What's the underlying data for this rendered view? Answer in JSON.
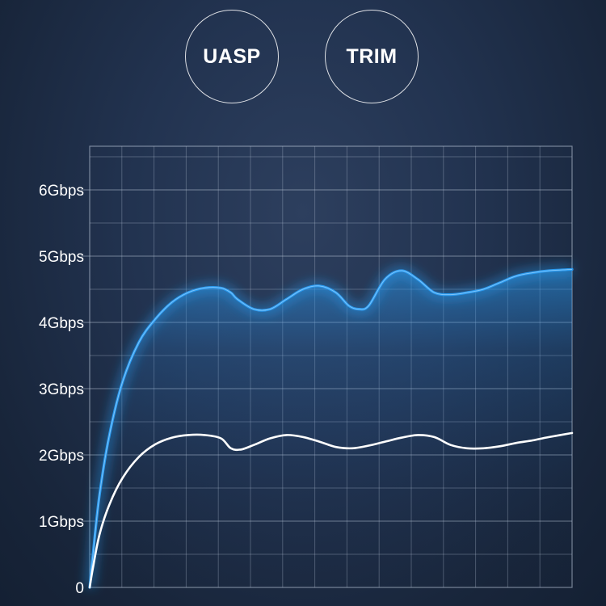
{
  "badges": {
    "uasp": "UASP",
    "trim": "TRIM"
  },
  "colors": {
    "background": "#1c2a42",
    "grid": "#b8c4d6",
    "series_blue": "#2a9bf0",
    "series_white": "#ffffff"
  },
  "chart_data": {
    "type": "line",
    "title": "",
    "xlabel": "",
    "ylabel": "",
    "ylim": [
      0,
      6.6
    ],
    "xlim": [
      0,
      14.7
    ],
    "yticks": [
      {
        "value": 0,
        "label": "0"
      },
      {
        "value": 1,
        "label": "1Gbps"
      },
      {
        "value": 2,
        "label": "2Gbps"
      },
      {
        "value": 3,
        "label": "3Gbps"
      },
      {
        "value": 4,
        "label": "4Gbps"
      },
      {
        "value": 5,
        "label": "5Gbps"
      },
      {
        "value": 6,
        "label": "6Gbps"
      }
    ],
    "grid": true,
    "series": [
      {
        "color": "#2a9bf0",
        "style": "glow-area",
        "x": [
          0,
          0.1,
          0.3,
          0.6,
          1.0,
          1.5,
          2.0,
          2.5,
          3.0,
          3.5,
          4.0,
          4.3,
          4.5,
          5.0,
          5.5,
          6.0,
          6.5,
          7.0,
          7.5,
          7.9,
          8.2,
          8.5,
          9.0,
          9.5,
          10.0,
          10.5,
          11.0,
          11.5,
          12.0,
          12.5,
          13.0,
          13.5,
          14.0,
          14.7
        ],
        "values": [
          0,
          0.5,
          1.4,
          2.3,
          3.1,
          3.7,
          4.05,
          4.3,
          4.45,
          4.52,
          4.52,
          4.45,
          4.35,
          4.2,
          4.2,
          4.35,
          4.5,
          4.55,
          4.45,
          4.25,
          4.2,
          4.25,
          4.65,
          4.78,
          4.65,
          4.45,
          4.42,
          4.45,
          4.5,
          4.6,
          4.7,
          4.75,
          4.78,
          4.8
        ]
      },
      {
        "color": "#ffffff",
        "style": "line",
        "x": [
          0,
          0.1,
          0.3,
          0.6,
          1.0,
          1.5,
          2.0,
          2.5,
          3.0,
          3.5,
          4.0,
          4.3,
          4.6,
          5.0,
          5.5,
          6.0,
          6.5,
          7.0,
          7.5,
          8.0,
          8.5,
          9.0,
          9.5,
          10.0,
          10.5,
          11.0,
          11.5,
          12.0,
          12.5,
          13.0,
          13.5,
          14.0,
          14.7
        ],
        "values": [
          0,
          0.3,
          0.8,
          1.25,
          1.65,
          1.97,
          2.16,
          2.26,
          2.3,
          2.3,
          2.25,
          2.1,
          2.08,
          2.15,
          2.25,
          2.3,
          2.27,
          2.2,
          2.12,
          2.1,
          2.14,
          2.2,
          2.26,
          2.3,
          2.27,
          2.15,
          2.1,
          2.1,
          2.13,
          2.18,
          2.22,
          2.27,
          2.33
        ]
      }
    ]
  }
}
